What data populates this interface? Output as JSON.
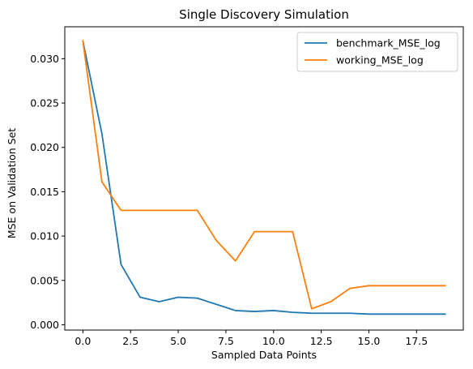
{
  "chart_data": {
    "type": "line",
    "title": "Single Discovery Simulation",
    "xlabel": "Sampled Data Points",
    "ylabel": "MSE on Validation Set",
    "xlim": [
      -0.95,
      19.95
    ],
    "ylim": [
      -0.0006,
      0.0336
    ],
    "xticks": [
      0.0,
      2.5,
      5.0,
      7.5,
      10.0,
      12.5,
      15.0,
      17.5
    ],
    "xtick_labels": [
      "0.0",
      "2.5",
      "5.0",
      "7.5",
      "10.0",
      "12.5",
      "15.0",
      "17.5"
    ],
    "yticks": [
      0.0,
      0.005,
      0.01,
      0.015,
      0.02,
      0.025,
      0.03
    ],
    "ytick_labels": [
      "0.000",
      "0.005",
      "0.010",
      "0.015",
      "0.020",
      "0.025",
      "0.030"
    ],
    "grid": false,
    "legend_position": "top-right",
    "x": [
      0,
      1,
      2,
      3,
      4,
      5,
      6,
      7,
      8,
      9,
      10,
      11,
      12,
      13,
      14,
      15,
      16,
      17,
      18,
      19
    ],
    "series": [
      {
        "name": "benchmark_MSE_log",
        "color": "#1f77b4",
        "values": [
          0.032,
          0.0215,
          0.0068,
          0.0031,
          0.0026,
          0.0031,
          0.003,
          0.0023,
          0.0016,
          0.0015,
          0.0016,
          0.0014,
          0.0013,
          0.0013,
          0.0013,
          0.0012,
          0.0012,
          0.0012,
          0.0012,
          0.0012
        ]
      },
      {
        "name": "working_MSE_log",
        "color": "#ff7f0e",
        "values": [
          0.032,
          0.0161,
          0.0129,
          0.0129,
          0.0129,
          0.0129,
          0.0129,
          0.0095,
          0.0072,
          0.0105,
          0.0105,
          0.0105,
          0.0018,
          0.0026,
          0.0041,
          0.0044,
          0.0044,
          0.0044,
          0.0044,
          0.0044
        ]
      }
    ]
  }
}
